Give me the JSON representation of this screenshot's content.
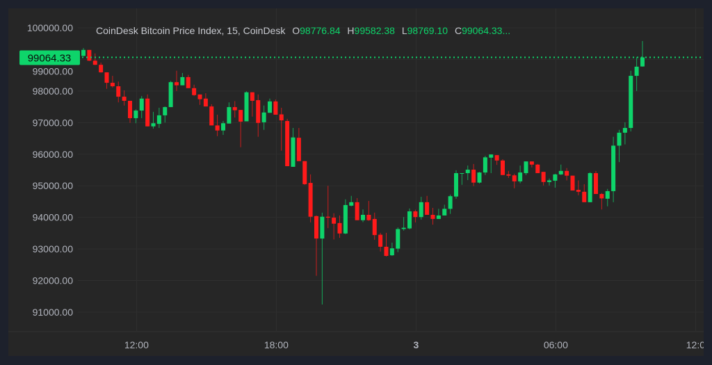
{
  "header": {
    "title": "CoinDesk Bitcoin Price Index, 15, CoinDesk",
    "o_label": "O",
    "o_value": "98776.84",
    "h_label": "H",
    "h_value": "99582.38",
    "l_label": "L",
    "l_value": "98769.10",
    "c_label": "C",
    "c_value": "99064.33..."
  },
  "colors": {
    "up": "#0ed46a",
    "down": "#ff1a1a",
    "background": "#262626",
    "text": "#b2b5be",
    "grid": "#2f2f2f"
  },
  "chart_data": {
    "type": "candlestick",
    "title": "CoinDesk Bitcoin Price Index, 15, CoinDesk",
    "interval": "15",
    "last_price": 99064.33,
    "last_price_label": "99064.33",
    "ylim": [
      90500,
      100300
    ],
    "y_ticks": [
      "100000.00",
      "99000.00",
      "98000.00",
      "97000.00",
      "96000.00",
      "95000.00",
      "94000.00",
      "93000.00",
      "92000.00",
      "91000.00"
    ],
    "y_tick_values": [
      100000,
      99000,
      98000,
      97000,
      96000,
      95000,
      94000,
      93000,
      92000,
      91000
    ],
    "x_ticks": [
      {
        "label": "12:00",
        "candle": 9
      },
      {
        "label": "18:00",
        "candle": 33
      },
      {
        "label": "3",
        "candle": 57
      },
      {
        "label": "06:00",
        "candle": 81
      },
      {
        "label": "12:0",
        "candle": 105
      }
    ],
    "grid": true,
    "ohlc": [
      [
        99110,
        99360,
        99100,
        99300
      ],
      [
        99300,
        99300,
        98950,
        98960
      ],
      [
        98960,
        99190,
        98820,
        98830
      ],
      [
        98830,
        98900,
        98580,
        98590
      ],
      [
        98590,
        98590,
        98070,
        98260
      ],
      [
        98260,
        98480,
        98110,
        98150
      ],
      [
        98150,
        98300,
        97640,
        97820
      ],
      [
        97820,
        98020,
        97540,
        97690
      ],
      [
        97690,
        97690,
        96990,
        97140
      ],
      [
        97140,
        97420,
        96980,
        97380
      ],
      [
        97380,
        97840,
        97140,
        97760
      ],
      [
        97760,
        97890,
        96880,
        96880
      ],
      [
        96880,
        97340,
        96810,
        96980
      ],
      [
        96960,
        97470,
        96830,
        97230
      ],
      [
        97230,
        97510,
        97000,
        97490
      ],
      [
        97490,
        98320,
        97490,
        98280
      ],
      [
        98280,
        98640,
        98000,
        98180
      ],
      [
        98180,
        98570,
        98180,
        98440
      ],
      [
        98440,
        98510,
        98090,
        98090
      ],
      [
        98090,
        98200,
        97840,
        97870
      ],
      [
        97890,
        97890,
        97560,
        97740
      ],
      [
        97760,
        97930,
        97510,
        97510
      ],
      [
        97510,
        97580,
        96910,
        96910
      ],
      [
        96910,
        97250,
        96570,
        96750
      ],
      [
        96750,
        97050,
        96610,
        96980
      ],
      [
        96970,
        97640,
        96970,
        97490
      ],
      [
        97490,
        97680,
        97160,
        97390
      ],
      [
        97400,
        97400,
        96220,
        97030
      ],
      [
        97040,
        97990,
        97040,
        97960
      ],
      [
        97960,
        97960,
        97190,
        97690
      ],
      [
        97710,
        97890,
        96550,
        96990
      ],
      [
        97010,
        97540,
        96770,
        97320
      ],
      [
        97310,
        97760,
        97310,
        97670
      ],
      [
        97670,
        97730,
        97250,
        97250
      ],
      [
        97260,
        97470,
        96110,
        97070
      ],
      [
        97050,
        97120,
        95620,
        95620
      ],
      [
        95600,
        96830,
        95600,
        96530
      ],
      [
        96520,
        96830,
        95780,
        95780
      ],
      [
        95780,
        95780,
        95030,
        95050
      ],
      [
        95090,
        95360,
        93840,
        94020
      ],
      [
        94040,
        94060,
        92150,
        93330
      ],
      [
        93330,
        94150,
        91240,
        94020
      ],
      [
        94020,
        95000,
        93660,
        93990
      ],
      [
        93990,
        94130,
        93300,
        93800
      ],
      [
        93820,
        94060,
        93350,
        93490
      ],
      [
        93490,
        94570,
        93470,
        94390
      ],
      [
        94370,
        94680,
        94350,
        94480
      ],
      [
        94480,
        94610,
        93910,
        93910
      ],
      [
        93910,
        94250,
        93850,
        94080
      ],
      [
        94080,
        94520,
        93890,
        93910
      ],
      [
        93950,
        94150,
        93290,
        93440
      ],
      [
        93450,
        93510,
        92920,
        93070
      ],
      [
        93070,
        93510,
        92760,
        92780
      ],
      [
        92800,
        93200,
        92780,
        93020
      ],
      [
        93010,
        93680,
        92900,
        93630
      ],
      [
        93630,
        94010,
        93580,
        93670
      ],
      [
        93650,
        94280,
        93620,
        94190
      ],
      [
        94190,
        94240,
        93840,
        94010
      ],
      [
        94010,
        94650,
        93930,
        94480
      ],
      [
        94480,
        94680,
        94080,
        94080
      ],
      [
        94080,
        94300,
        93770,
        93950
      ],
      [
        93950,
        94270,
        93950,
        94060
      ],
      [
        94060,
        94400,
        94060,
        94270
      ],
      [
        94270,
        94720,
        94110,
        94670
      ],
      [
        94660,
        95490,
        94590,
        95400
      ],
      [
        95380,
        95400,
        95030,
        95400
      ],
      [
        95400,
        95640,
        95180,
        95510
      ],
      [
        95510,
        95690,
        94990,
        95100
      ],
      [
        95100,
        95440,
        95070,
        95420
      ],
      [
        95420,
        95950,
        95340,
        95900
      ],
      [
        95890,
        95990,
        95400,
        95990
      ],
      [
        95970,
        95970,
        95660,
        95800
      ],
      [
        95800,
        95840,
        95340,
        95340
      ],
      [
        95360,
        95470,
        95250,
        95320
      ],
      [
        95330,
        95380,
        94920,
        95140
      ],
      [
        95140,
        95640,
        95080,
        95420
      ],
      [
        95400,
        95770,
        95340,
        95770
      ],
      [
        95770,
        95770,
        95580,
        95670
      ],
      [
        95670,
        95690,
        95400,
        95400
      ],
      [
        95440,
        95440,
        95010,
        95120
      ],
      [
        95120,
        95230,
        95010,
        95170
      ],
      [
        95160,
        95380,
        94940,
        95360
      ],
      [
        95360,
        95670,
        95340,
        95470
      ],
      [
        95470,
        95560,
        95170,
        95320
      ],
      [
        95320,
        95320,
        94850,
        94850
      ],
      [
        94870,
        95170,
        94700,
        94810
      ],
      [
        94810,
        95050,
        94480,
        94480
      ],
      [
        94480,
        95430,
        94480,
        95400
      ],
      [
        95400,
        95470,
        94740,
        94740
      ],
      [
        94740,
        94770,
        94250,
        94600
      ],
      [
        94590,
        94900,
        94350,
        94830
      ],
      [
        94830,
        96550,
        94480,
        96270
      ],
      [
        96270,
        96770,
        95750,
        96680
      ],
      [
        96680,
        97010,
        96310,
        96830
      ],
      [
        96830,
        98640,
        96720,
        98480
      ],
      [
        98480,
        99070,
        98000,
        98770
      ],
      [
        98776.84,
        99582.38,
        98769.1,
        99064.33
      ]
    ]
  }
}
